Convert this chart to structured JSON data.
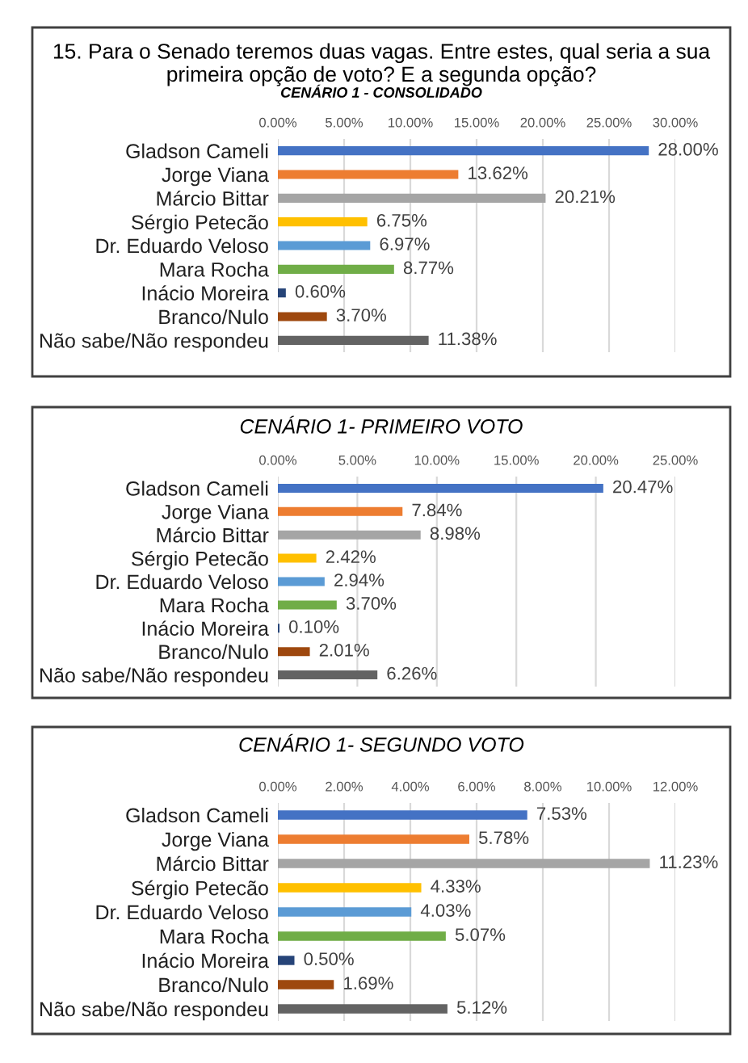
{
  "chart_data": [
    {
      "type": "bar",
      "orientation": "horizontal",
      "title": "15. Para o Senado teremos duas vagas. Entre estes, qual seria a sua primeira opção de voto? E a segunda opção?",
      "subtitle": "CENÁRIO 1 - CONSOLIDADO",
      "categories": [
        "Gladson Cameli",
        "Jorge Viana",
        "Márcio Bittar",
        "Sérgio Petecão",
        "Dr. Eduardo Veloso",
        "Mara Rocha",
        "Inácio Moreira",
        "Branco/Nulo",
        "Não sabe/Não respondeu"
      ],
      "values": [
        28.0,
        13.62,
        20.21,
        6.75,
        6.97,
        8.77,
        0.6,
        3.7,
        11.38
      ],
      "value_labels": [
        "28.00%",
        "13.62%",
        "20.21%",
        "6.75%",
        "6.97%",
        "8.77%",
        "0.60%",
        "3.70%",
        "11.38%"
      ],
      "colors": [
        "#4472c4",
        "#ed7d31",
        "#a5a5a5",
        "#ffc000",
        "#5b9bd5",
        "#70ad47",
        "#264478",
        "#9e480e",
        "#636363"
      ],
      "xlim": [
        0,
        30
      ],
      "xticks": [
        {
          "value": 0,
          "label": "0.00%"
        },
        {
          "value": 5,
          "label": "5.00%"
        },
        {
          "value": 10,
          "label": "10.00%"
        },
        {
          "value": 15,
          "label": "15.00%"
        },
        {
          "value": 20,
          "label": "20.00%"
        },
        {
          "value": 25,
          "label": "25.00%"
        },
        {
          "value": 30,
          "label": "30.00%"
        }
      ],
      "grid": "x"
    },
    {
      "type": "bar",
      "orientation": "horizontal",
      "title": "CENÁRIO 1- PRIMEIRO VOTO",
      "categories": [
        "Gladson Cameli",
        "Jorge Viana",
        "Márcio Bittar",
        "Sérgio Petecão",
        "Dr. Eduardo Veloso",
        "Mara Rocha",
        "Inácio Moreira",
        "Branco/Nulo",
        "Não sabe/Não respondeu"
      ],
      "values": [
        20.47,
        7.84,
        8.98,
        2.42,
        2.94,
        3.7,
        0.1,
        2.01,
        6.26
      ],
      "value_labels": [
        "20.47%",
        "7.84%",
        "8.98%",
        "2.42%",
        "2.94%",
        "3.70%",
        "0.10%",
        "2.01%",
        "6.26%"
      ],
      "colors": [
        "#4472c4",
        "#ed7d31",
        "#a5a5a5",
        "#ffc000",
        "#5b9bd5",
        "#70ad47",
        "#264478",
        "#9e480e",
        "#636363"
      ],
      "xlim": [
        0,
        25
      ],
      "xticks": [
        {
          "value": 0,
          "label": "0.00%"
        },
        {
          "value": 5,
          "label": "5.00%"
        },
        {
          "value": 10,
          "label": "10.00%"
        },
        {
          "value": 15,
          "label": "15.00%"
        },
        {
          "value": 20,
          "label": "20.00%"
        },
        {
          "value": 25,
          "label": "25.00%"
        }
      ],
      "grid": "x"
    },
    {
      "type": "bar",
      "orientation": "horizontal",
      "title": "CENÁRIO 1- SEGUNDO VOTO",
      "categories": [
        "Gladson Cameli",
        "Jorge Viana",
        "Márcio Bittar",
        "Sérgio Petecão",
        "Dr. Eduardo Veloso",
        "Mara Rocha",
        "Inácio Moreira",
        "Branco/Nulo",
        "Não sabe/Não respondeu"
      ],
      "values": [
        7.53,
        5.78,
        11.23,
        4.33,
        4.03,
        5.07,
        0.5,
        1.69,
        5.12
      ],
      "value_labels": [
        "7.53%",
        "5.78%",
        "11.23%",
        "4.33%",
        "4.03%",
        "5.07%",
        "0.50%",
        "1.69%",
        "5.12%"
      ],
      "colors": [
        "#4472c4",
        "#ed7d31",
        "#a5a5a5",
        "#ffc000",
        "#5b9bd5",
        "#70ad47",
        "#264478",
        "#9e480e",
        "#636363"
      ],
      "xlim": [
        0,
        12
      ],
      "xticks": [
        {
          "value": 0,
          "label": "0.00%"
        },
        {
          "value": 2,
          "label": "2.00%"
        },
        {
          "value": 4,
          "label": "4.00%"
        },
        {
          "value": 6,
          "label": "6.00%"
        },
        {
          "value": 8,
          "label": "8.00%"
        },
        {
          "value": 10,
          "label": "10.00%"
        },
        {
          "value": 12,
          "label": "12.00%"
        }
      ],
      "grid": "x"
    }
  ]
}
